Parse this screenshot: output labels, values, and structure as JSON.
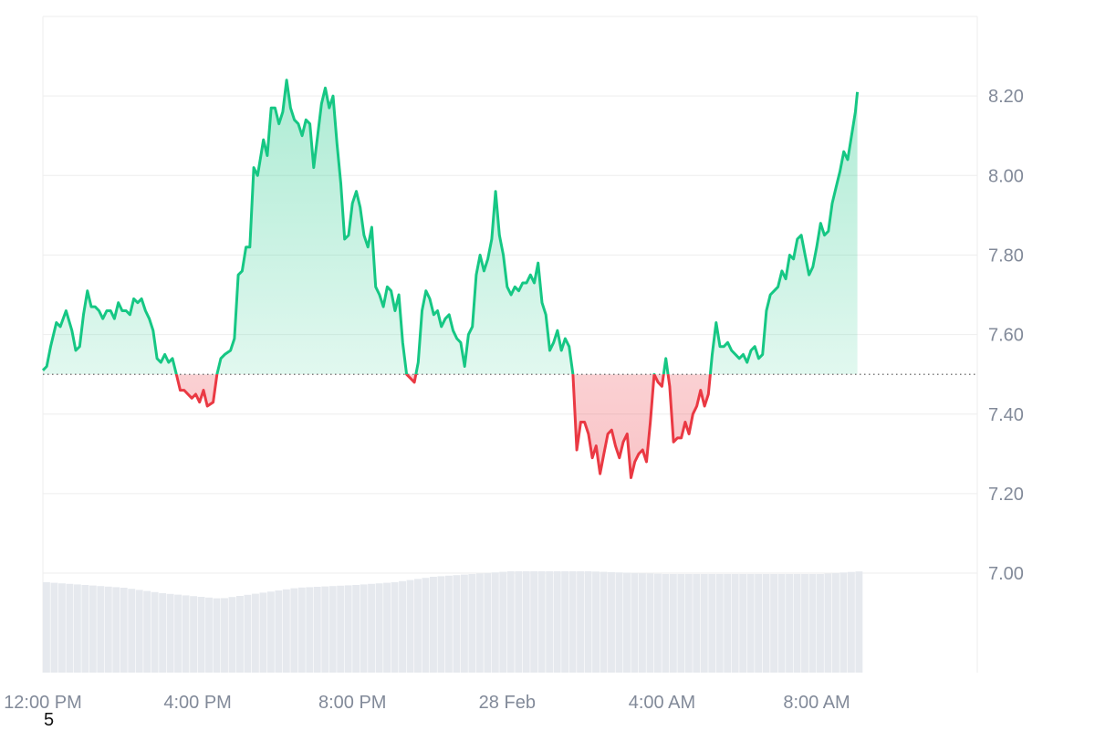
{
  "chart_data": {
    "type": "area",
    "baseline": 7.5,
    "ylim": [
      6.75,
      8.4
    ],
    "y_ticks": [
      "7.00",
      "7.20",
      "7.40",
      "7.60",
      "7.80",
      "8.00",
      "8.20"
    ],
    "y_tick_values": [
      7.0,
      7.2,
      7.4,
      7.6,
      7.8,
      8.0,
      8.2
    ],
    "x_ticks": [
      "12:00 PM",
      "4:00 PM",
      "8:00 PM",
      "28 Feb",
      "4:00 AM",
      "8:00 AM"
    ],
    "x_tick_hours": [
      0,
      4,
      8,
      12,
      16,
      20
    ],
    "x_range_hours": [
      0,
      24.15
    ],
    "colors": {
      "up_line": "#16c784",
      "up_fill": "#16c784",
      "down_line": "#ea3943",
      "down_fill": "#ea3943",
      "volume": "#e6e9ee",
      "grid": "#eeeeee",
      "baseline": "#555555"
    },
    "price": [
      [
        0.0,
        7.51
      ],
      [
        0.1,
        7.52
      ],
      [
        0.2,
        7.57
      ],
      [
        0.35,
        7.63
      ],
      [
        0.45,
        7.62
      ],
      [
        0.6,
        7.66
      ],
      [
        0.75,
        7.61
      ],
      [
        0.85,
        7.56
      ],
      [
        0.95,
        7.57
      ],
      [
        1.05,
        7.65
      ],
      [
        1.15,
        7.71
      ],
      [
        1.25,
        7.67
      ],
      [
        1.35,
        7.67
      ],
      [
        1.45,
        7.66
      ],
      [
        1.55,
        7.64
      ],
      [
        1.65,
        7.66
      ],
      [
        1.75,
        7.66
      ],
      [
        1.85,
        7.64
      ],
      [
        1.95,
        7.68
      ],
      [
        2.05,
        7.66
      ],
      [
        2.15,
        7.66
      ],
      [
        2.25,
        7.65
      ],
      [
        2.35,
        7.69
      ],
      [
        2.45,
        7.68
      ],
      [
        2.55,
        7.69
      ],
      [
        2.65,
        7.66
      ],
      [
        2.75,
        7.64
      ],
      [
        2.85,
        7.61
      ],
      [
        2.95,
        7.54
      ],
      [
        3.05,
        7.53
      ],
      [
        3.15,
        7.55
      ],
      [
        3.25,
        7.53
      ],
      [
        3.35,
        7.54
      ],
      [
        3.45,
        7.5
      ],
      [
        3.55,
        7.46
      ],
      [
        3.65,
        7.46
      ],
      [
        3.75,
        7.45
      ],
      [
        3.85,
        7.44
      ],
      [
        3.95,
        7.45
      ],
      [
        4.05,
        7.43
      ],
      [
        4.15,
        7.46
      ],
      [
        4.25,
        7.42
      ],
      [
        4.4,
        7.43
      ],
      [
        4.5,
        7.5
      ],
      [
        4.6,
        7.54
      ],
      [
        4.7,
        7.55
      ],
      [
        4.85,
        7.56
      ],
      [
        4.95,
        7.59
      ],
      [
        5.05,
        7.75
      ],
      [
        5.15,
        7.76
      ],
      [
        5.25,
        7.82
      ],
      [
        5.35,
        7.82
      ],
      [
        5.45,
        8.02
      ],
      [
        5.55,
        8.0
      ],
      [
        5.65,
        8.06
      ],
      [
        5.7,
        8.09
      ],
      [
        5.8,
        8.05
      ],
      [
        5.9,
        8.17
      ],
      [
        6.0,
        8.17
      ],
      [
        6.1,
        8.13
      ],
      [
        6.2,
        8.16
      ],
      [
        6.3,
        8.24
      ],
      [
        6.4,
        8.17
      ],
      [
        6.5,
        8.14
      ],
      [
        6.6,
        8.13
      ],
      [
        6.7,
        8.1
      ],
      [
        6.8,
        8.14
      ],
      [
        6.9,
        8.13
      ],
      [
        7.0,
        8.02
      ],
      [
        7.1,
        8.1
      ],
      [
        7.2,
        8.18
      ],
      [
        7.3,
        8.22
      ],
      [
        7.4,
        8.17
      ],
      [
        7.5,
        8.2
      ],
      [
        7.6,
        8.08
      ],
      [
        7.7,
        7.98
      ],
      [
        7.8,
        7.84
      ],
      [
        7.9,
        7.85
      ],
      [
        8.0,
        7.93
      ],
      [
        8.1,
        7.96
      ],
      [
        8.2,
        7.92
      ],
      [
        8.3,
        7.85
      ],
      [
        8.4,
        7.82
      ],
      [
        8.5,
        7.87
      ],
      [
        8.6,
        7.72
      ],
      [
        8.7,
        7.7
      ],
      [
        8.8,
        7.67
      ],
      [
        8.9,
        7.72
      ],
      [
        9.0,
        7.71
      ],
      [
        9.1,
        7.66
      ],
      [
        9.2,
        7.7
      ],
      [
        9.3,
        7.58
      ],
      [
        9.4,
        7.5
      ],
      [
        9.5,
        7.49
      ],
      [
        9.6,
        7.48
      ],
      [
        9.7,
        7.53
      ],
      [
        9.8,
        7.66
      ],
      [
        9.9,
        7.71
      ],
      [
        10.0,
        7.69
      ],
      [
        10.1,
        7.65
      ],
      [
        10.2,
        7.66
      ],
      [
        10.3,
        7.62
      ],
      [
        10.4,
        7.64
      ],
      [
        10.5,
        7.65
      ],
      [
        10.6,
        7.61
      ],
      [
        10.7,
        7.59
      ],
      [
        10.8,
        7.58
      ],
      [
        10.9,
        7.52
      ],
      [
        11.0,
        7.6
      ],
      [
        11.1,
        7.62
      ],
      [
        11.2,
        7.75
      ],
      [
        11.3,
        7.8
      ],
      [
        11.4,
        7.76
      ],
      [
        11.5,
        7.79
      ],
      [
        11.6,
        7.84
      ],
      [
        11.7,
        7.96
      ],
      [
        11.8,
        7.85
      ],
      [
        11.9,
        7.8
      ],
      [
        12.0,
        7.72
      ],
      [
        12.1,
        7.7
      ],
      [
        12.2,
        7.72
      ],
      [
        12.3,
        7.71
      ],
      [
        12.4,
        7.73
      ],
      [
        12.5,
        7.73
      ],
      [
        12.6,
        7.75
      ],
      [
        12.7,
        7.73
      ],
      [
        12.8,
        7.78
      ],
      [
        12.9,
        7.68
      ],
      [
        13.0,
        7.65
      ],
      [
        13.1,
        7.56
      ],
      [
        13.2,
        7.58
      ],
      [
        13.3,
        7.61
      ],
      [
        13.4,
        7.56
      ],
      [
        13.5,
        7.59
      ],
      [
        13.6,
        7.57
      ],
      [
        13.7,
        7.5
      ],
      [
        13.8,
        7.31
      ],
      [
        13.9,
        7.38
      ],
      [
        14.0,
        7.38
      ],
      [
        14.1,
        7.35
      ],
      [
        14.2,
        7.29
      ],
      [
        14.3,
        7.32
      ],
      [
        14.4,
        7.25
      ],
      [
        14.5,
        7.3
      ],
      [
        14.6,
        7.35
      ],
      [
        14.7,
        7.36
      ],
      [
        14.8,
        7.32
      ],
      [
        14.9,
        7.29
      ],
      [
        15.0,
        7.33
      ],
      [
        15.1,
        7.35
      ],
      [
        15.2,
        7.24
      ],
      [
        15.3,
        7.28
      ],
      [
        15.4,
        7.3
      ],
      [
        15.5,
        7.31
      ],
      [
        15.6,
        7.28
      ],
      [
        15.7,
        7.38
      ],
      [
        15.8,
        7.5
      ],
      [
        15.9,
        7.48
      ],
      [
        16.0,
        7.47
      ],
      [
        16.1,
        7.54
      ],
      [
        16.2,
        7.47
      ],
      [
        16.3,
        7.33
      ],
      [
        16.4,
        7.34
      ],
      [
        16.5,
        7.34
      ],
      [
        16.6,
        7.38
      ],
      [
        16.7,
        7.35
      ],
      [
        16.8,
        7.4
      ],
      [
        16.9,
        7.42
      ],
      [
        17.0,
        7.46
      ],
      [
        17.1,
        7.42
      ],
      [
        17.2,
        7.45
      ],
      [
        17.3,
        7.55
      ],
      [
        17.4,
        7.63
      ],
      [
        17.5,
        7.57
      ],
      [
        17.6,
        7.57
      ],
      [
        17.7,
        7.58
      ],
      [
        17.8,
        7.56
      ],
      [
        17.9,
        7.55
      ],
      [
        18.0,
        7.54
      ],
      [
        18.1,
        7.55
      ],
      [
        18.2,
        7.53
      ],
      [
        18.3,
        7.56
      ],
      [
        18.4,
        7.57
      ],
      [
        18.5,
        7.54
      ],
      [
        18.6,
        7.55
      ],
      [
        18.7,
        7.66
      ],
      [
        18.8,
        7.7
      ],
      [
        18.9,
        7.71
      ],
      [
        19.0,
        7.72
      ],
      [
        19.1,
        7.76
      ],
      [
        19.2,
        7.74
      ],
      [
        19.3,
        7.8
      ],
      [
        19.4,
        7.79
      ],
      [
        19.5,
        7.84
      ],
      [
        19.6,
        7.85
      ],
      [
        19.7,
        7.8
      ],
      [
        19.8,
        7.75
      ],
      [
        19.9,
        7.77
      ],
      [
        20.0,
        7.82
      ],
      [
        20.1,
        7.88
      ],
      [
        20.2,
        7.85
      ],
      [
        20.3,
        7.86
      ],
      [
        20.4,
        7.93
      ],
      [
        20.5,
        7.97
      ],
      [
        20.6,
        8.01
      ],
      [
        20.7,
        8.06
      ],
      [
        20.8,
        8.04
      ],
      [
        20.9,
        8.1
      ],
      [
        21.0,
        8.16
      ],
      [
        21.05,
        8.21
      ]
    ],
    "volume_level": [
      [
        0,
        0.33
      ],
      [
        2,
        0.31
      ],
      [
        3,
        0.29
      ],
      [
        4.5,
        0.27
      ],
      [
        5.5,
        0.29
      ],
      [
        6.5,
        0.31
      ],
      [
        8,
        0.32
      ],
      [
        9,
        0.33
      ],
      [
        10,
        0.35
      ],
      [
        12,
        0.37
      ],
      [
        14,
        0.37
      ],
      [
        16,
        0.36
      ],
      [
        18,
        0.36
      ],
      [
        20,
        0.36
      ],
      [
        21.05,
        0.37
      ]
    ]
  },
  "footnote": "5"
}
